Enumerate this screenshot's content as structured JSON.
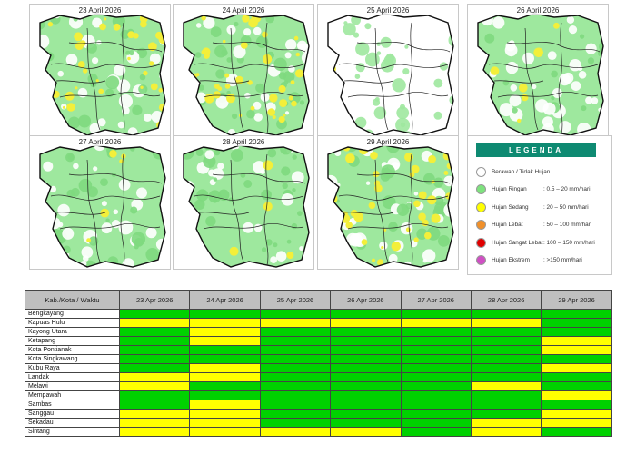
{
  "colors": {
    "light": "#00d100",
    "moderate": "#ffff00",
    "heavy": "#f79646",
    "very_heavy": "#e00000",
    "extreme": "#d04fc4",
    "cloudy": "#ffffff",
    "legend_header": "#0e8a72"
  },
  "maps": [
    {
      "title": "23 April 2026",
      "rain_level": "mixed-moderate"
    },
    {
      "title": "24 April 2026",
      "rain_level": "mixed-moderate"
    },
    {
      "title": "25 April 2026",
      "rain_level": "sparse-light"
    },
    {
      "title": "26 April 2026",
      "rain_level": "mostly-light"
    },
    {
      "title": "27 April 2026",
      "rain_level": "mostly-light"
    },
    {
      "title": "28 April 2026",
      "rain_level": "mostly-light"
    },
    {
      "title": "29 April 2026",
      "rain_level": "mixed-moderate"
    }
  ],
  "legend": {
    "title": "LEGENDA",
    "items": [
      {
        "label": "Berawan / Tidak Hujan",
        "range": "",
        "color": "#ffffff"
      },
      {
        "label": "Hujan Ringan",
        "range": ": 0.5 – 20 mm/hari",
        "color": "#7ee27e"
      },
      {
        "label": "Hujan Sedang",
        "range": ": 20 – 50 mm/hari",
        "color": "#ffff00"
      },
      {
        "label": "Hujan Lebat",
        "range": ": 50 – 100 mm/hari",
        "color": "#f0902a"
      },
      {
        "label": "Hujan Sangat Lebat",
        "range": ": 100 – 150 mm/hari",
        "color": "#e00000"
      },
      {
        "label": "Hujan Ekstrem",
        "range": ": >150 mm/hari",
        "color": "#d04fc4"
      }
    ]
  },
  "table": {
    "header_label": "Kab./Kota / Waktu",
    "dates": [
      "23 Apr 2026",
      "24 Apr 2026",
      "25 Apr 2026",
      "26 Apr 2026",
      "27 Apr 2026",
      "28 Apr 2026",
      "29 Apr 2026"
    ],
    "rows": [
      {
        "name": "Bengkayang",
        "cells": [
          "light",
          "light",
          "light",
          "light",
          "light",
          "light",
          "light"
        ]
      },
      {
        "name": "Kapuas Hulu",
        "cells": [
          "moderate",
          "moderate",
          "moderate",
          "moderate",
          "moderate",
          "moderate",
          "light"
        ]
      },
      {
        "name": "Kayong Utara",
        "cells": [
          "light",
          "moderate",
          "light",
          "light",
          "light",
          "light",
          "light"
        ]
      },
      {
        "name": "Ketapang",
        "cells": [
          "light",
          "moderate",
          "light",
          "light",
          "light",
          "light",
          "moderate"
        ]
      },
      {
        "name": "Kota Pontianak",
        "cells": [
          "light",
          "light",
          "light",
          "light",
          "light",
          "light",
          "moderate"
        ]
      },
      {
        "name": "Kota Singkawang",
        "cells": [
          "light",
          "light",
          "light",
          "light",
          "light",
          "light",
          "light"
        ]
      },
      {
        "name": "Kubu Raya",
        "cells": [
          "light",
          "moderate",
          "light",
          "light",
          "light",
          "light",
          "moderate"
        ]
      },
      {
        "name": "Landak",
        "cells": [
          "moderate",
          "moderate",
          "light",
          "light",
          "light",
          "light",
          "light"
        ]
      },
      {
        "name": "Melawi",
        "cells": [
          "moderate",
          "light",
          "light",
          "light",
          "light",
          "moderate",
          "light"
        ]
      },
      {
        "name": "Mempawah",
        "cells": [
          "light",
          "light",
          "light",
          "light",
          "light",
          "light",
          "moderate"
        ]
      },
      {
        "name": "Sambas",
        "cells": [
          "light",
          "moderate",
          "light",
          "light",
          "light",
          "light",
          "light"
        ]
      },
      {
        "name": "Sanggau",
        "cells": [
          "moderate",
          "moderate",
          "light",
          "light",
          "light",
          "light",
          "moderate"
        ]
      },
      {
        "name": "Sekadau",
        "cells": [
          "moderate",
          "moderate",
          "light",
          "light",
          "light",
          "moderate",
          "moderate"
        ]
      },
      {
        "name": "Sintang",
        "cells": [
          "moderate",
          "moderate",
          "moderate",
          "moderate",
          "light",
          "moderate",
          "light"
        ]
      }
    ]
  }
}
